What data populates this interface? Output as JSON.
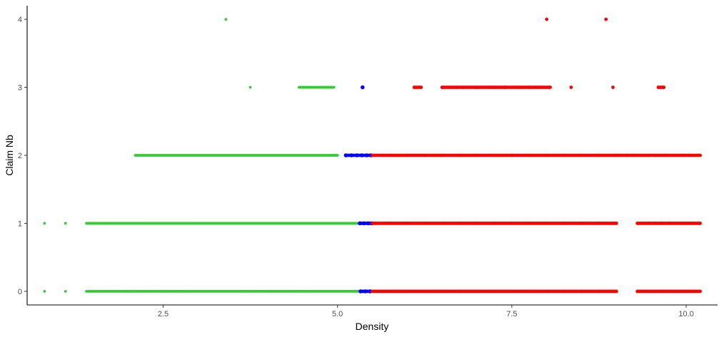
{
  "chart_data": {
    "type": "scatter",
    "title": "",
    "xlabel": "Density",
    "ylabel": "Claim Nb",
    "xlim": [
      0.55,
      10.45
    ],
    "ylim": [
      -0.2,
      4.2
    ],
    "x_ticks": [
      2.5,
      5.0,
      7.5,
      10.0
    ],
    "x_tick_labels": [
      "2.5",
      "5.0",
      "7.5",
      "10.0"
    ],
    "y_ticks": [
      0,
      1,
      2,
      3,
      4
    ],
    "y_tick_labels": [
      "0",
      "1",
      "2",
      "3",
      "4"
    ],
    "grid": false,
    "legend": "none",
    "series": [
      {
        "color": "#33cc33",
        "points": [
          {
            "x": 0.8,
            "y": 0
          },
          {
            "x": 1.1,
            "y": 0
          },
          {
            "x": 1.4,
            "y": 0
          },
          {
            "x": 1.6,
            "y": 0
          },
          {
            "x": 1.8,
            "y": 0
          },
          {
            "x": 1.95,
            "y": 0
          },
          {
            "x": 2.1,
            "y": 0
          },
          {
            "x": 2.2,
            "y": 0
          },
          {
            "x": 2.3,
            "y": 0
          },
          {
            "x": 2.4,
            "y": 0
          },
          {
            "x": 2.5,
            "y": 0
          },
          {
            "x": 2.6,
            "y": 0
          },
          {
            "x": 2.7,
            "y": 0
          },
          {
            "x": 2.8,
            "y": 0
          },
          {
            "x": 2.9,
            "y": 0
          },
          {
            "x": 3.0,
            "y": 0
          },
          {
            "x": 3.2,
            "y": 0
          },
          {
            "x": 3.4,
            "y": 0
          },
          {
            "x": 3.6,
            "y": 0
          },
          {
            "x": 3.8,
            "y": 0
          },
          {
            "x": 4.0,
            "y": 0
          },
          {
            "x": 4.2,
            "y": 0
          },
          {
            "x": 4.4,
            "y": 0
          },
          {
            "x": 4.6,
            "y": 0
          },
          {
            "x": 4.8,
            "y": 0
          },
          {
            "x": 5.0,
            "y": 0
          },
          {
            "x": 5.2,
            "y": 0
          },
          {
            "x": 5.3,
            "y": 0
          },
          {
            "x": 0.8,
            "y": 1
          },
          {
            "x": 1.1,
            "y": 1
          },
          {
            "x": 1.4,
            "y": 1
          },
          {
            "x": 1.6,
            "y": 1
          },
          {
            "x": 1.8,
            "y": 1
          },
          {
            "x": 1.95,
            "y": 1
          },
          {
            "x": 2.1,
            "y": 1
          },
          {
            "x": 2.2,
            "y": 1
          },
          {
            "x": 2.3,
            "y": 1
          },
          {
            "x": 2.4,
            "y": 1
          },
          {
            "x": 2.5,
            "y": 1
          },
          {
            "x": 2.6,
            "y": 1
          },
          {
            "x": 2.7,
            "y": 1
          },
          {
            "x": 2.8,
            "y": 1
          },
          {
            "x": 2.9,
            "y": 1
          },
          {
            "x": 3.0,
            "y": 1
          },
          {
            "x": 3.2,
            "y": 1
          },
          {
            "x": 3.4,
            "y": 1
          },
          {
            "x": 3.6,
            "y": 1
          },
          {
            "x": 3.8,
            "y": 1
          },
          {
            "x": 4.0,
            "y": 1
          },
          {
            "x": 4.2,
            "y": 1
          },
          {
            "x": 4.4,
            "y": 1
          },
          {
            "x": 4.6,
            "y": 1
          },
          {
            "x": 4.8,
            "y": 1
          },
          {
            "x": 5.0,
            "y": 1
          },
          {
            "x": 5.2,
            "y": 1
          },
          {
            "x": 5.3,
            "y": 1
          },
          {
            "x": 2.1,
            "y": 2
          },
          {
            "x": 2.3,
            "y": 2
          },
          {
            "x": 2.4,
            "y": 2
          },
          {
            "x": 2.5,
            "y": 2
          },
          {
            "x": 2.6,
            "y": 2
          },
          {
            "x": 2.75,
            "y": 2
          },
          {
            "x": 2.85,
            "y": 2
          },
          {
            "x": 2.95,
            "y": 2
          },
          {
            "x": 3.05,
            "y": 2
          },
          {
            "x": 3.2,
            "y": 2
          },
          {
            "x": 3.4,
            "y": 2
          },
          {
            "x": 3.6,
            "y": 2
          },
          {
            "x": 3.8,
            "y": 2
          },
          {
            "x": 4.0,
            "y": 2
          },
          {
            "x": 4.2,
            "y": 2
          },
          {
            "x": 4.4,
            "y": 2
          },
          {
            "x": 4.6,
            "y": 2
          },
          {
            "x": 4.8,
            "y": 2
          },
          {
            "x": 5.0,
            "y": 2
          },
          {
            "x": 3.75,
            "y": 3
          },
          {
            "x": 4.45,
            "y": 3
          },
          {
            "x": 4.7,
            "y": 3
          },
          {
            "x": 4.85,
            "y": 3
          },
          {
            "x": 4.95,
            "y": 3
          },
          {
            "x": 3.4,
            "y": 4
          }
        ]
      },
      {
        "color": "#0000ff",
        "points": [
          {
            "x": 5.33,
            "y": 0
          },
          {
            "x": 5.4,
            "y": 0
          },
          {
            "x": 5.47,
            "y": 0
          },
          {
            "x": 5.32,
            "y": 1
          },
          {
            "x": 5.38,
            "y": 1
          },
          {
            "x": 5.44,
            "y": 1
          },
          {
            "x": 5.49,
            "y": 1
          },
          {
            "x": 5.12,
            "y": 2
          },
          {
            "x": 5.2,
            "y": 2
          },
          {
            "x": 5.28,
            "y": 2
          },
          {
            "x": 5.35,
            "y": 2
          },
          {
            "x": 5.42,
            "y": 2
          },
          {
            "x": 5.48,
            "y": 2
          },
          {
            "x": 5.36,
            "y": 3
          }
        ]
      },
      {
        "color": "#ff0000",
        "points": [
          {
            "x": 5.5,
            "y": 0
          },
          {
            "x": 5.75,
            "y": 0
          },
          {
            "x": 6.0,
            "y": 0
          },
          {
            "x": 6.25,
            "y": 0
          },
          {
            "x": 6.5,
            "y": 0
          },
          {
            "x": 6.75,
            "y": 0
          },
          {
            "x": 7.0,
            "y": 0
          },
          {
            "x": 7.25,
            "y": 0
          },
          {
            "x": 7.5,
            "y": 0
          },
          {
            "x": 7.75,
            "y": 0
          },
          {
            "x": 8.0,
            "y": 0
          },
          {
            "x": 8.25,
            "y": 0
          },
          {
            "x": 8.5,
            "y": 0
          },
          {
            "x": 8.75,
            "y": 0
          },
          {
            "x": 9.0,
            "y": 0
          },
          {
            "x": 9.3,
            "y": 0
          },
          {
            "x": 9.45,
            "y": 0
          },
          {
            "x": 9.55,
            "y": 0
          },
          {
            "x": 9.65,
            "y": 0
          },
          {
            "x": 9.75,
            "y": 0
          },
          {
            "x": 9.85,
            "y": 0
          },
          {
            "x": 9.95,
            "y": 0
          },
          {
            "x": 10.2,
            "y": 0
          },
          {
            "x": 5.5,
            "y": 1
          },
          {
            "x": 5.75,
            "y": 1
          },
          {
            "x": 6.0,
            "y": 1
          },
          {
            "x": 6.25,
            "y": 1
          },
          {
            "x": 6.5,
            "y": 1
          },
          {
            "x": 6.75,
            "y": 1
          },
          {
            "x": 7.0,
            "y": 1
          },
          {
            "x": 7.25,
            "y": 1
          },
          {
            "x": 7.5,
            "y": 1
          },
          {
            "x": 7.75,
            "y": 1
          },
          {
            "x": 8.0,
            "y": 1
          },
          {
            "x": 8.25,
            "y": 1
          },
          {
            "x": 8.5,
            "y": 1
          },
          {
            "x": 8.75,
            "y": 1
          },
          {
            "x": 9.0,
            "y": 1
          },
          {
            "x": 9.3,
            "y": 1
          },
          {
            "x": 9.45,
            "y": 1
          },
          {
            "x": 9.55,
            "y": 1
          },
          {
            "x": 9.65,
            "y": 1
          },
          {
            "x": 9.75,
            "y": 1
          },
          {
            "x": 9.95,
            "y": 1
          },
          {
            "x": 10.05,
            "y": 1
          },
          {
            "x": 10.2,
            "y": 1
          },
          {
            "x": 5.5,
            "y": 2
          },
          {
            "x": 5.75,
            "y": 2
          },
          {
            "x": 6.0,
            "y": 2
          },
          {
            "x": 6.25,
            "y": 2
          },
          {
            "x": 6.5,
            "y": 2
          },
          {
            "x": 6.75,
            "y": 2
          },
          {
            "x": 7.0,
            "y": 2
          },
          {
            "x": 7.25,
            "y": 2
          },
          {
            "x": 7.5,
            "y": 2
          },
          {
            "x": 7.75,
            "y": 2
          },
          {
            "x": 8.0,
            "y": 2
          },
          {
            "x": 8.25,
            "y": 2
          },
          {
            "x": 8.5,
            "y": 2
          },
          {
            "x": 8.75,
            "y": 2
          },
          {
            "x": 9.0,
            "y": 2
          },
          {
            "x": 9.15,
            "y": 2
          },
          {
            "x": 9.25,
            "y": 2
          },
          {
            "x": 9.45,
            "y": 2
          },
          {
            "x": 9.55,
            "y": 2
          },
          {
            "x": 9.7,
            "y": 2
          },
          {
            "x": 9.95,
            "y": 2
          },
          {
            "x": 10.05,
            "y": 2
          },
          {
            "x": 10.2,
            "y": 2
          },
          {
            "x": 6.1,
            "y": 3
          },
          {
            "x": 6.2,
            "y": 3
          },
          {
            "x": 6.5,
            "y": 3
          },
          {
            "x": 6.7,
            "y": 3
          },
          {
            "x": 6.8,
            "y": 3
          },
          {
            "x": 7.0,
            "y": 3
          },
          {
            "x": 7.2,
            "y": 3
          },
          {
            "x": 7.25,
            "y": 3
          },
          {
            "x": 7.4,
            "y": 3
          },
          {
            "x": 7.6,
            "y": 3
          },
          {
            "x": 7.65,
            "y": 3
          },
          {
            "x": 7.75,
            "y": 3
          },
          {
            "x": 7.85,
            "y": 3
          },
          {
            "x": 8.05,
            "y": 3
          },
          {
            "x": 8.35,
            "y": 3
          },
          {
            "x": 8.95,
            "y": 3
          },
          {
            "x": 9.6,
            "y": 3
          },
          {
            "x": 9.68,
            "y": 3
          },
          {
            "x": 8.0,
            "y": 4
          },
          {
            "x": 8.85,
            "y": 4
          }
        ]
      }
    ]
  }
}
